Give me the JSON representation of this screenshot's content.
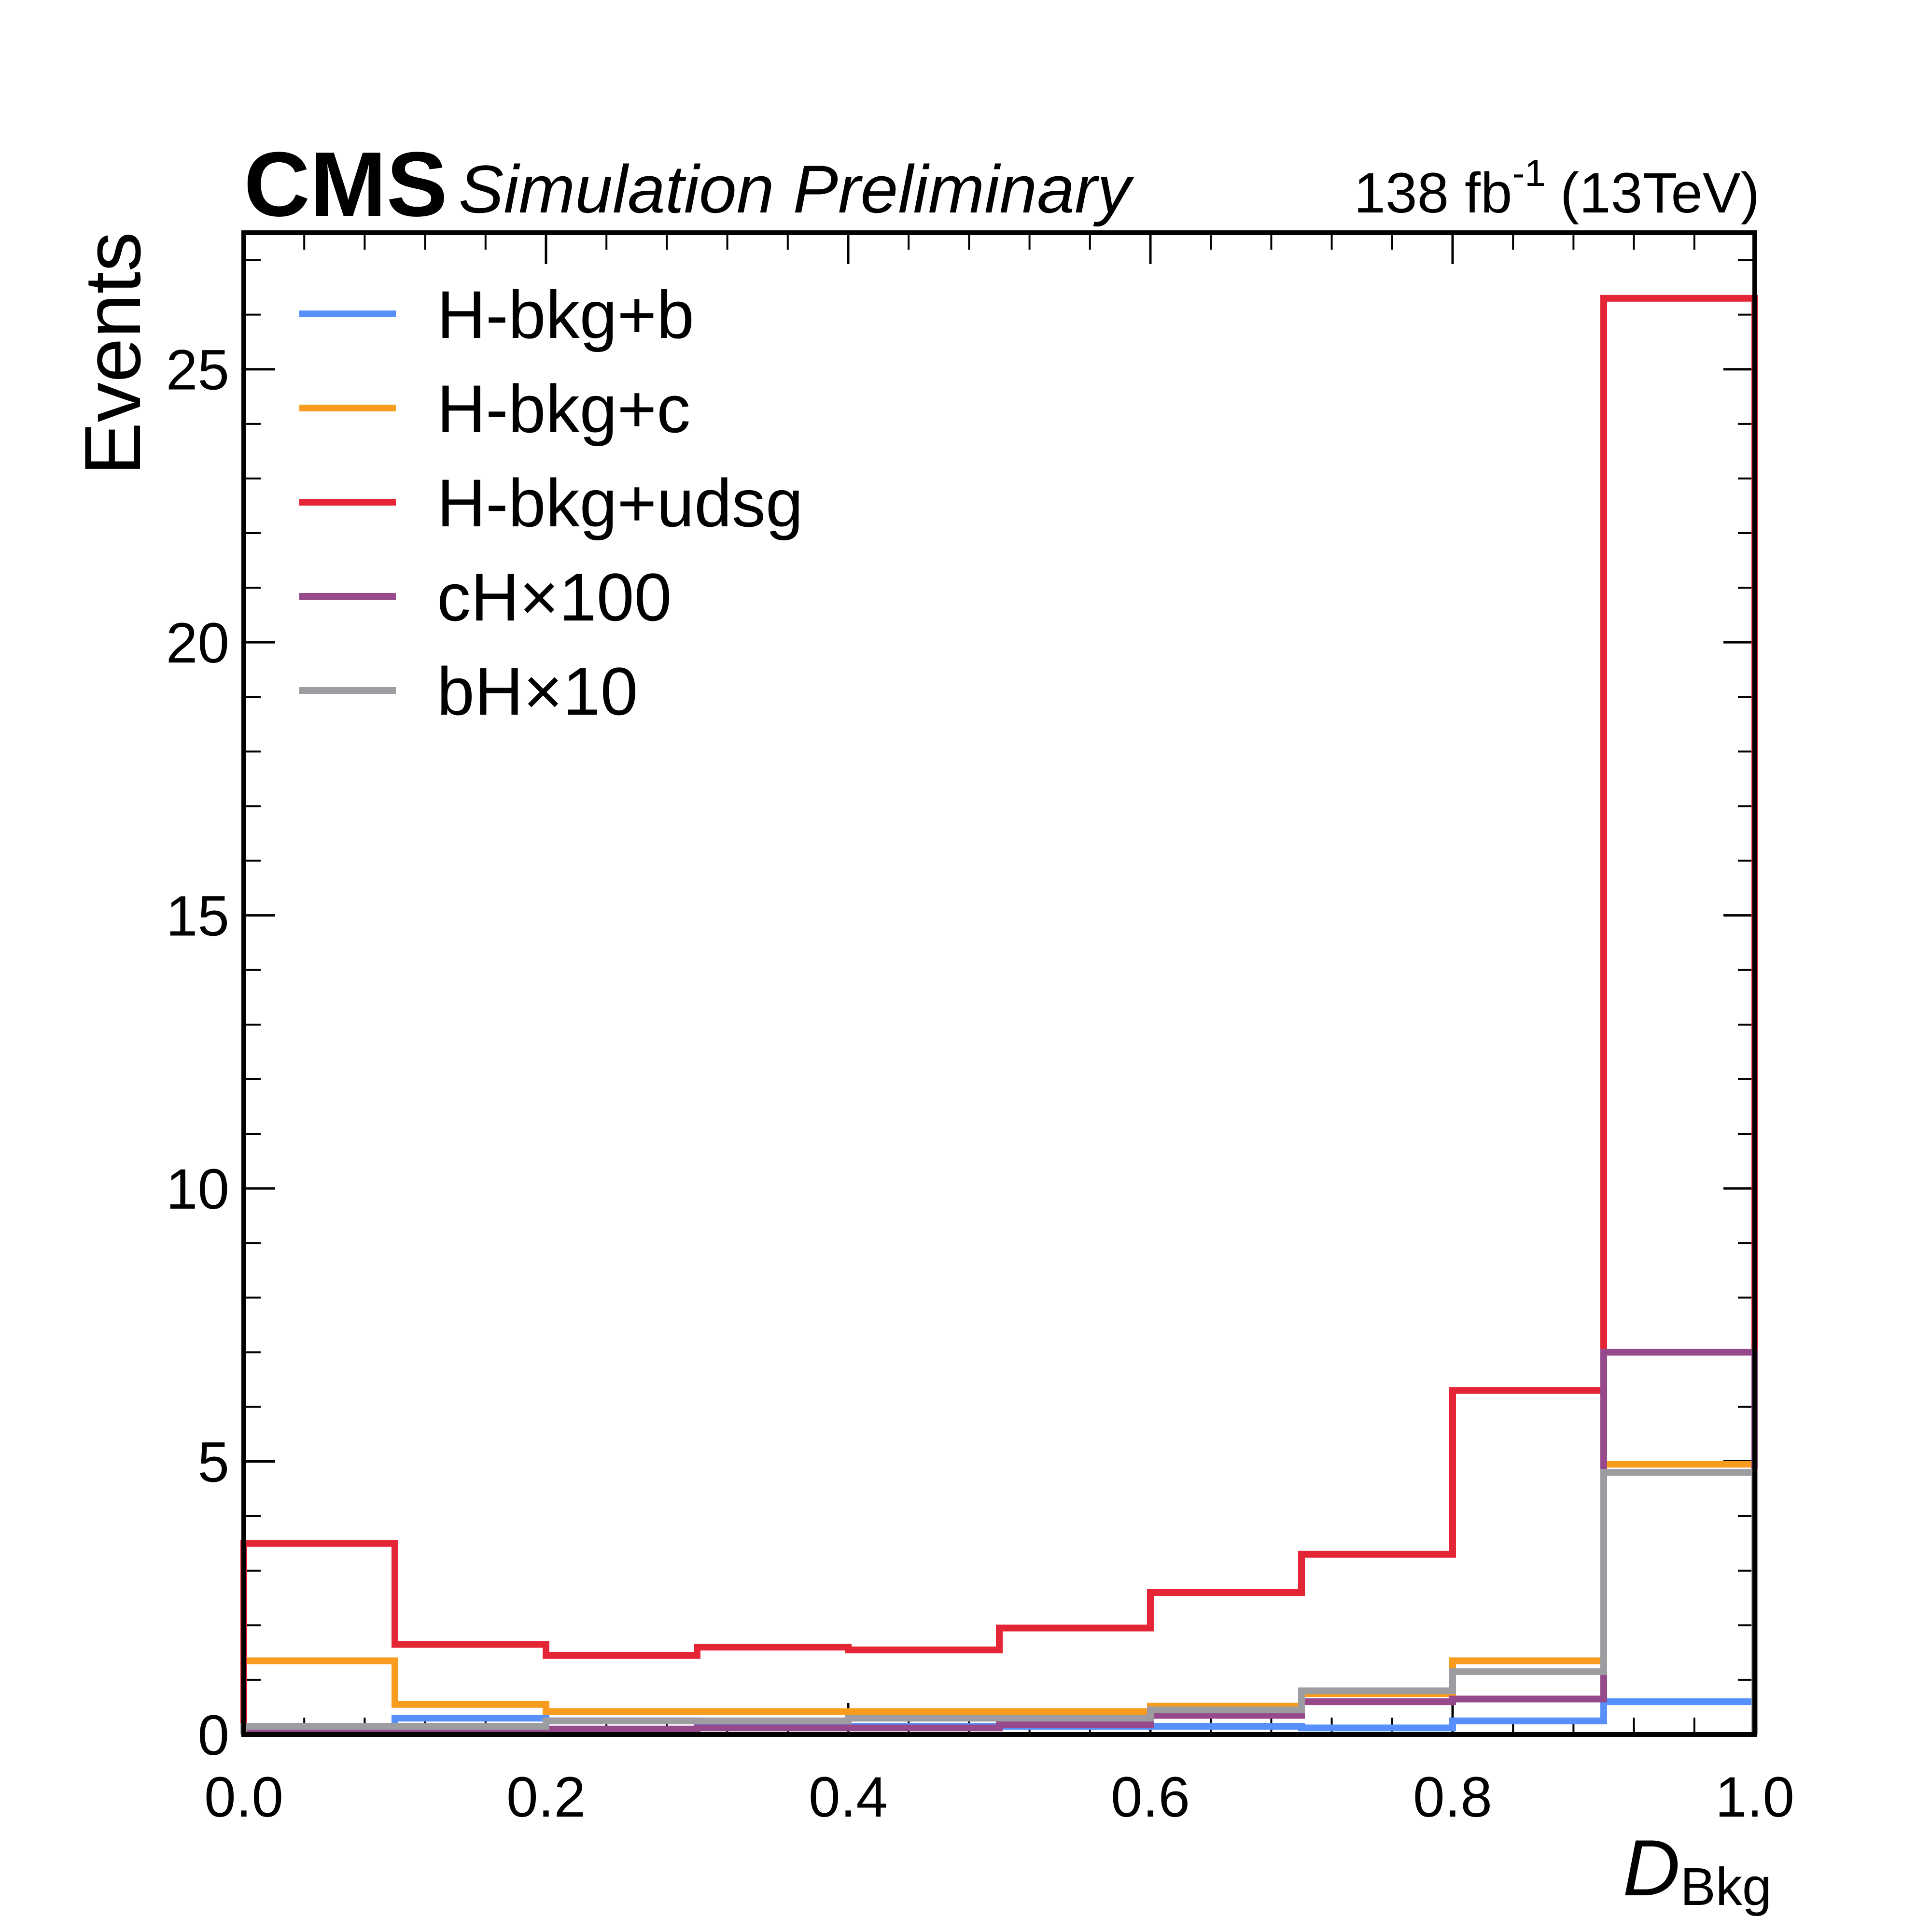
{
  "header": {
    "experiment": "CMS",
    "status": "Simulation Preliminary",
    "lumi_value": "138 fb",
    "lumi_exponent": "-1",
    "energy": "(13TeV)"
  },
  "chart_data": {
    "type": "step-histogram",
    "title": "",
    "xlabel_main": "D",
    "xlabel_sub": "Bkg",
    "ylabel": "Events",
    "xlim": [
      0.0,
      1.0
    ],
    "ylim": [
      0,
      27.5
    ],
    "grid": false,
    "legend_position": "top-left",
    "bin_edges": [
      0.0,
      0.1,
      0.2,
      0.3,
      0.4,
      0.5,
      0.6,
      0.7,
      0.8,
      0.9,
      1.0
    ],
    "x_ticks": [
      {
        "value": 0.0,
        "label": "0.0"
      },
      {
        "value": 0.2,
        "label": "0.2"
      },
      {
        "value": 0.4,
        "label": "0.4"
      },
      {
        "value": 0.6,
        "label": "0.6"
      },
      {
        "value": 0.8,
        "label": "0.8"
      },
      {
        "value": 1.0,
        "label": "1.0"
      }
    ],
    "y_ticks": [
      {
        "value": 0,
        "label": "0"
      },
      {
        "value": 5,
        "label": "5"
      },
      {
        "value": 10,
        "label": "10"
      },
      {
        "value": 15,
        "label": "15"
      },
      {
        "value": 20,
        "label": "20"
      },
      {
        "value": 25,
        "label": "25"
      }
    ],
    "series": [
      {
        "name": "H-bkg+b",
        "color": "#5790fc",
        "values": [
          0.08,
          0.3,
          0.25,
          0.2,
          0.15,
          0.15,
          0.15,
          0.12,
          0.25,
          0.6
        ]
      },
      {
        "name": "H-bkg+c",
        "color": "#f89c20",
        "values": [
          1.35,
          0.55,
          0.42,
          0.42,
          0.42,
          0.42,
          0.52,
          0.75,
          1.35,
          4.95
        ]
      },
      {
        "name": "H-bkg+udsg",
        "color": "#e42536",
        "values": [
          3.5,
          1.65,
          1.45,
          1.6,
          1.55,
          1.95,
          2.6,
          3.3,
          6.3,
          26.3
        ]
      },
      {
        "name": "cH×100",
        "color": "#964a8b",
        "values": [
          0.05,
          0.05,
          0.1,
          0.12,
          0.12,
          0.18,
          0.35,
          0.6,
          0.65,
          7.0
        ]
      },
      {
        "name": "bH×10",
        "color": "#9c9ca1",
        "values": [
          0.15,
          0.15,
          0.25,
          0.25,
          0.3,
          0.3,
          0.45,
          0.8,
          1.15,
          4.8
        ]
      }
    ]
  }
}
